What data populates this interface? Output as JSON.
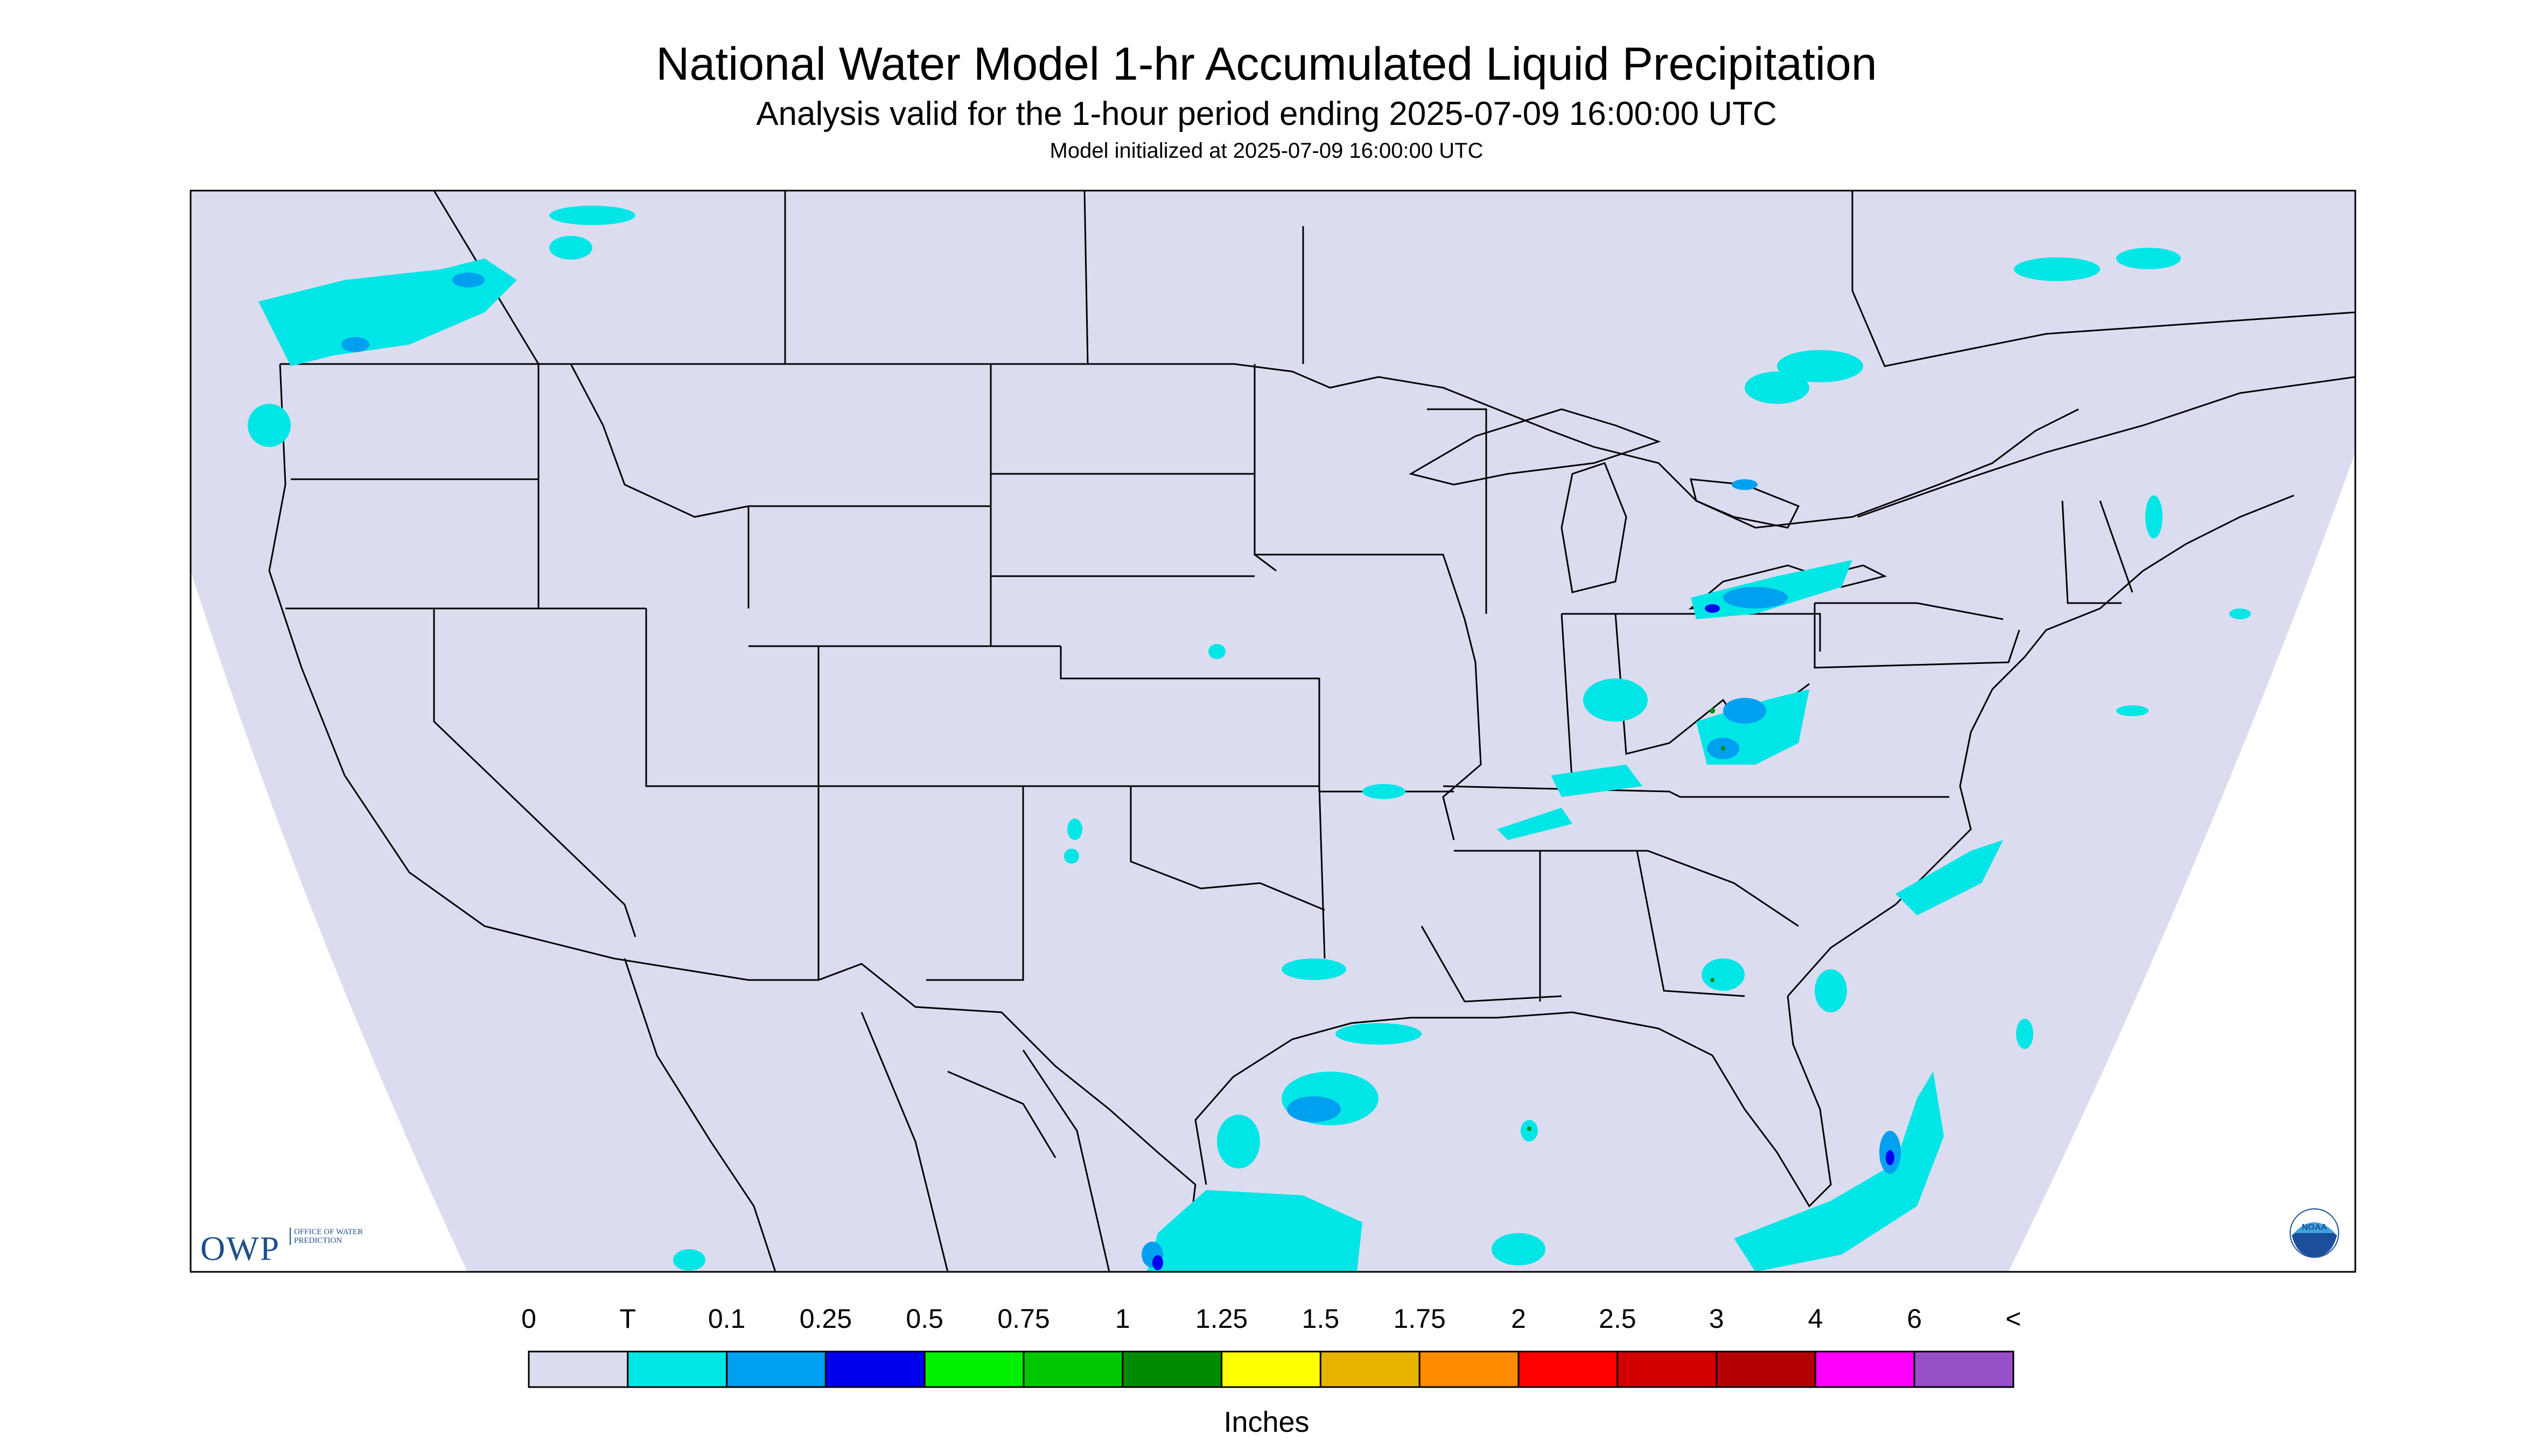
{
  "header": {
    "title": "National Water Model 1-hr Accumulated Liquid Precipitation",
    "subtitle": "Analysis valid for the 1-hour period ending 2025-07-09 16:00:00 UTC",
    "init_text": "Model initialized at 2025-07-09 16:00:00 UTC"
  },
  "logos": {
    "owp": "OWP",
    "owp_sub": "OFFICE OF WATER PREDICTION",
    "noaa": "NOAA"
  },
  "legend": {
    "unit_label": "Inches",
    "labels": [
      "0",
      "T",
      "0.1",
      "0.25",
      "0.5",
      "0.75",
      "1",
      "1.25",
      "1.5",
      "1.75",
      "2",
      "2.5",
      "3",
      "4",
      "6",
      "<"
    ],
    "colors": [
      "#dcdcf0",
      "#00e6e6",
      "#00a0f0",
      "#0000f0",
      "#00f000",
      "#00c800",
      "#008c00",
      "#ffff00",
      "#e6b400",
      "#ff8c00",
      "#ff0000",
      "#d20000",
      "#b40000",
      "#ff00ff",
      "#9650c8"
    ]
  },
  "colors": {
    "background": "#dcdcf0",
    "border": "#000000"
  }
}
